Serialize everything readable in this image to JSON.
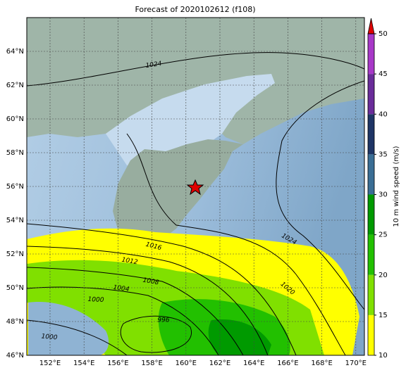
{
  "title": "Forecast of 2020102612 (f108)",
  "lat_labels": [
    "46°N",
    "48°N",
    "50°N",
    "52°N",
    "54°N",
    "56°N",
    "58°N",
    "60°N",
    "62°N",
    "64°N"
  ],
  "lon_labels": [
    "152°E",
    "154°E",
    "156°E",
    "158°E",
    "160°E",
    "162°E",
    "164°E",
    "166°E",
    "168°E",
    "170°E"
  ],
  "colorbar": {
    "label": "10 m wind speed (m/s)",
    "lim": [
      10,
      50
    ],
    "ticks": [
      10,
      15,
      20,
      25,
      30,
      35,
      40,
      45,
      50
    ],
    "colors": [
      "#ffff00",
      "#80e000",
      "#22c000",
      "#009a00",
      "#3a6e95",
      "#1e3566",
      "#6a2c9a",
      "#a838c8"
    ],
    "extend_color": "#e00000"
  },
  "contour_labels": [
    "1024",
    "1024",
    "1020",
    "1016",
    "1012",
    "1008",
    "1004",
    "1000",
    "1000",
    "996"
  ]
}
